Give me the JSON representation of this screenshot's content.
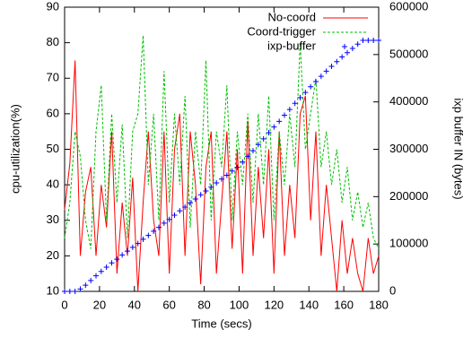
{
  "chart_data": {
    "type": "line",
    "xlabel": "Time (secs)",
    "ylabel": "cpu-utilization(%)",
    "y2label": "ixp buffer IN (bytes)",
    "x": [
      0,
      3,
      6,
      9,
      12,
      15,
      18,
      21,
      24,
      27,
      30,
      33,
      36,
      39,
      42,
      45,
      48,
      51,
      54,
      57,
      60,
      63,
      66,
      69,
      72,
      75,
      78,
      81,
      84,
      87,
      90,
      93,
      96,
      99,
      102,
      105,
      108,
      111,
      114,
      117,
      120,
      123,
      126,
      129,
      132,
      135,
      138,
      141,
      144,
      147,
      150,
      153,
      156,
      159,
      162,
      165,
      168,
      171,
      174,
      177,
      180
    ],
    "series": [
      {
        "name": "No-coord",
        "color": "#ff0000",
        "style": "solid",
        "values": [
          33,
          46,
          75,
          20,
          38,
          45,
          20,
          40,
          28,
          55,
          15,
          35,
          20,
          42,
          10,
          35,
          55,
          30,
          20,
          55,
          15,
          50,
          60,
          20,
          55,
          40,
          12,
          45,
          55,
          15,
          35,
          55,
          22,
          50,
          15,
          58,
          20,
          45,
          25,
          50,
          15,
          55,
          20,
          40,
          25,
          60,
          65,
          30,
          55,
          20,
          40,
          25,
          10,
          30,
          15,
          25,
          15,
          10,
          25,
          15,
          20
        ]
      },
      {
        "name": "Coord-trigger",
        "color": "#00c000",
        "style": "dashed",
        "values": [
          25,
          35,
          55,
          48,
          30,
          22,
          55,
          68,
          30,
          60,
          35,
          57,
          25,
          55,
          60,
          82,
          40,
          60,
          30,
          72,
          35,
          60,
          40,
          65,
          28,
          55,
          40,
          75,
          30,
          55,
          45,
          68,
          30,
          55,
          40,
          60,
          35,
          60,
          40,
          65,
          30,
          55,
          40,
          60,
          45,
          80,
          50,
          60,
          70,
          45,
          55,
          40,
          50,
          35,
          45,
          30,
          38,
          28,
          35,
          25,
          22
        ]
      },
      {
        "name": "ixp-buffer",
        "color": "#0000ff",
        "style": "plus",
        "axis": "y2",
        "values": [
          0,
          0,
          0,
          5000,
          13000,
          23000,
          33000,
          42000,
          51000,
          60000,
          68000,
          77000,
          85000,
          93000,
          101000,
          110000,
          118000,
          127000,
          135000,
          144000,
          152000,
          161000,
          170000,
          178000,
          187000,
          195000,
          204000,
          212000,
          220000,
          229000,
          237000,
          245000,
          254000,
          262000,
          273000,
          285000,
          297000,
          310000,
          322000,
          335000,
          347000,
          359000,
          372000,
          384000,
          397000,
          409000,
          420000,
          432000,
          443000,
          454000,
          465000,
          475000,
          485000,
          495000,
          504000,
          513000,
          522000,
          530000,
          530000,
          530000,
          530000
        ]
      }
    ],
    "xlim": [
      0,
      180
    ],
    "xticks": [
      0,
      20,
      40,
      60,
      80,
      100,
      120,
      140,
      160,
      180
    ],
    "ylim": [
      10,
      90
    ],
    "yticks": [
      10,
      20,
      30,
      40,
      50,
      60,
      70,
      80,
      90
    ],
    "y2lim": [
      0,
      600000
    ],
    "y2ticks": [
      0,
      100000,
      200000,
      300000,
      400000,
      500000,
      600000
    ],
    "legend": "top right",
    "grid": false
  }
}
